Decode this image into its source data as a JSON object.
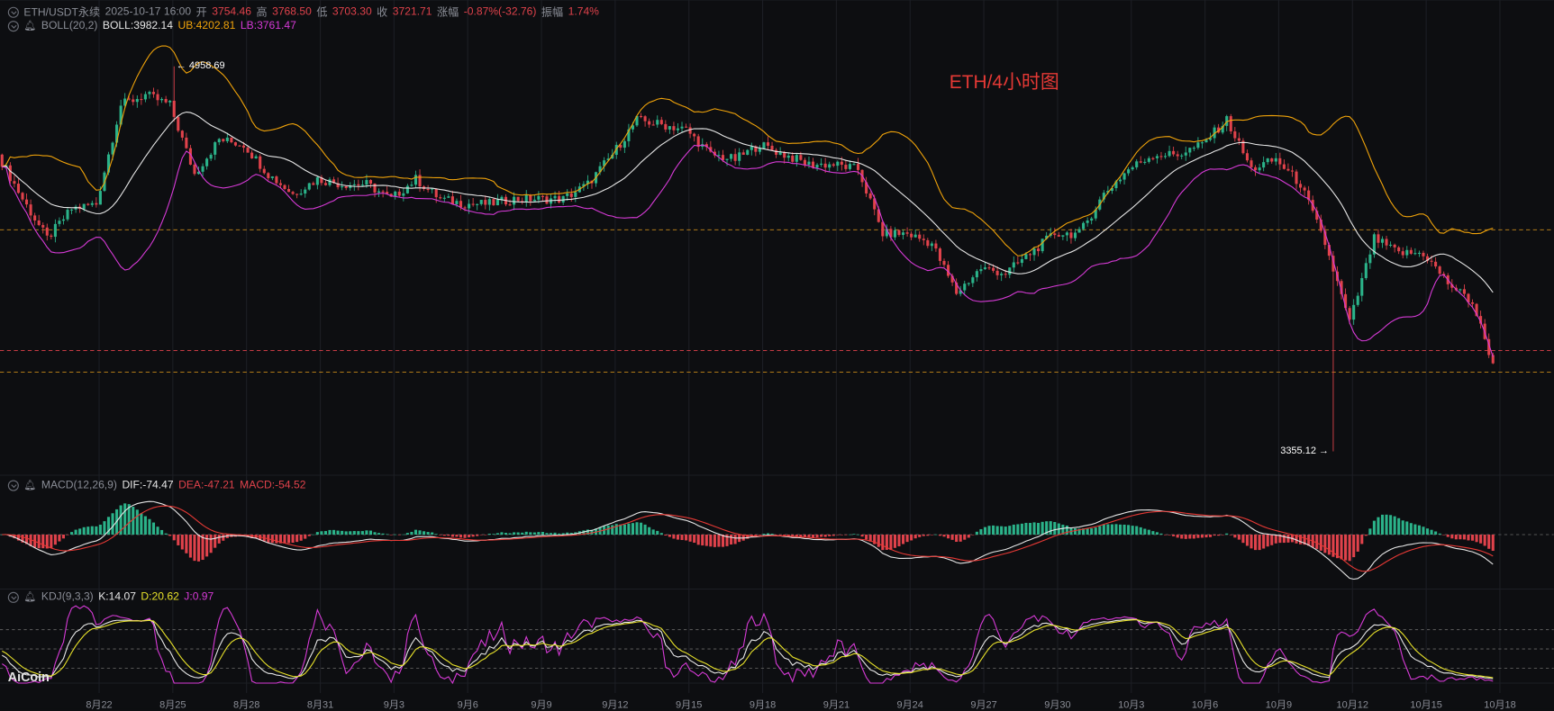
{
  "header": {
    "symbol": "ETH/USDT永续",
    "time": "2025-10-17 16:00",
    "open_label": "开",
    "open": "3754.46",
    "high_label": "高",
    "high": "3768.50",
    "low_label": "低",
    "low": "3703.30",
    "close_label": "收",
    "close": "3721.71",
    "change_label": "涨幅",
    "change": "-0.87%(-32.76)",
    "amp_label": "振幅",
    "amp": "1.74%"
  },
  "boll": {
    "name": "BOLL(20,2)",
    "mid": "BOLL:3982.14",
    "ub": "UB:4202.81",
    "lb": "LB:3761.47"
  },
  "macd": {
    "name": "MACD(12,26,9)",
    "dif": "DIF:-74.47",
    "dea": "DEA:-47.21",
    "macd": "MACD:-54.52"
  },
  "kdj": {
    "name": "KDJ(9,3,3)",
    "k": "K:14.07",
    "d": "D:20.62",
    "j": "J:0.97"
  },
  "chart_title": "ETH/4小时图",
  "logo": "AiCoin",
  "colors": {
    "up": "#2bb38a",
    "down": "#e0424b",
    "boll_mid": "#e6e6e6",
    "boll_ub": "#f0a30a",
    "boll_lb": "#d63ad6",
    "macd_dea": "#e53935",
    "kdj_d": "#e8e22a",
    "kdj_j": "#d63ad6"
  },
  "chart_data": {
    "type": "candlestick",
    "interval": "4h",
    "annotations": {
      "max_high": "← 4958.69",
      "min_low": "3355.12 →"
    },
    "high_value": 4958.69,
    "low_value": 3355.12,
    "ylim": [
      3297,
      5235
    ],
    "reference_prices": [
      4278,
      3775,
      3685
    ],
    "x_tick_labels": [
      "8月22",
      "8月25",
      "8月28",
      "8月31",
      "9月3",
      "9月6",
      "9月9",
      "9月12",
      "9月15",
      "9月18",
      "9月21",
      "9月24",
      "9月27",
      "9月30",
      "10月3",
      "10月6",
      "10月9",
      "10月12",
      "10月15",
      "10月18"
    ],
    "approx_daily_closes_from_8_18": [
      4591,
      4406,
      4241,
      4365,
      4386,
      4798,
      4840,
      4798,
      4510,
      4654,
      4633,
      4510,
      4427,
      4489,
      4468,
      4468,
      4406,
      4489,
      4406,
      4386,
      4386,
      4406,
      4406,
      4406,
      4468,
      4591,
      4736,
      4716,
      4695,
      4591,
      4571,
      4633,
      4591,
      4550,
      4550,
      4530,
      4262,
      4262,
      4221,
      4015,
      4118,
      4097,
      4180,
      4262,
      4262,
      4427,
      4530,
      4591,
      4591,
      4633,
      4736,
      4530,
      4571,
      4468,
      4221,
      3891,
      4241,
      4180,
      4180,
      4056,
      3974
    ],
    "last_close": 3721.71
  }
}
